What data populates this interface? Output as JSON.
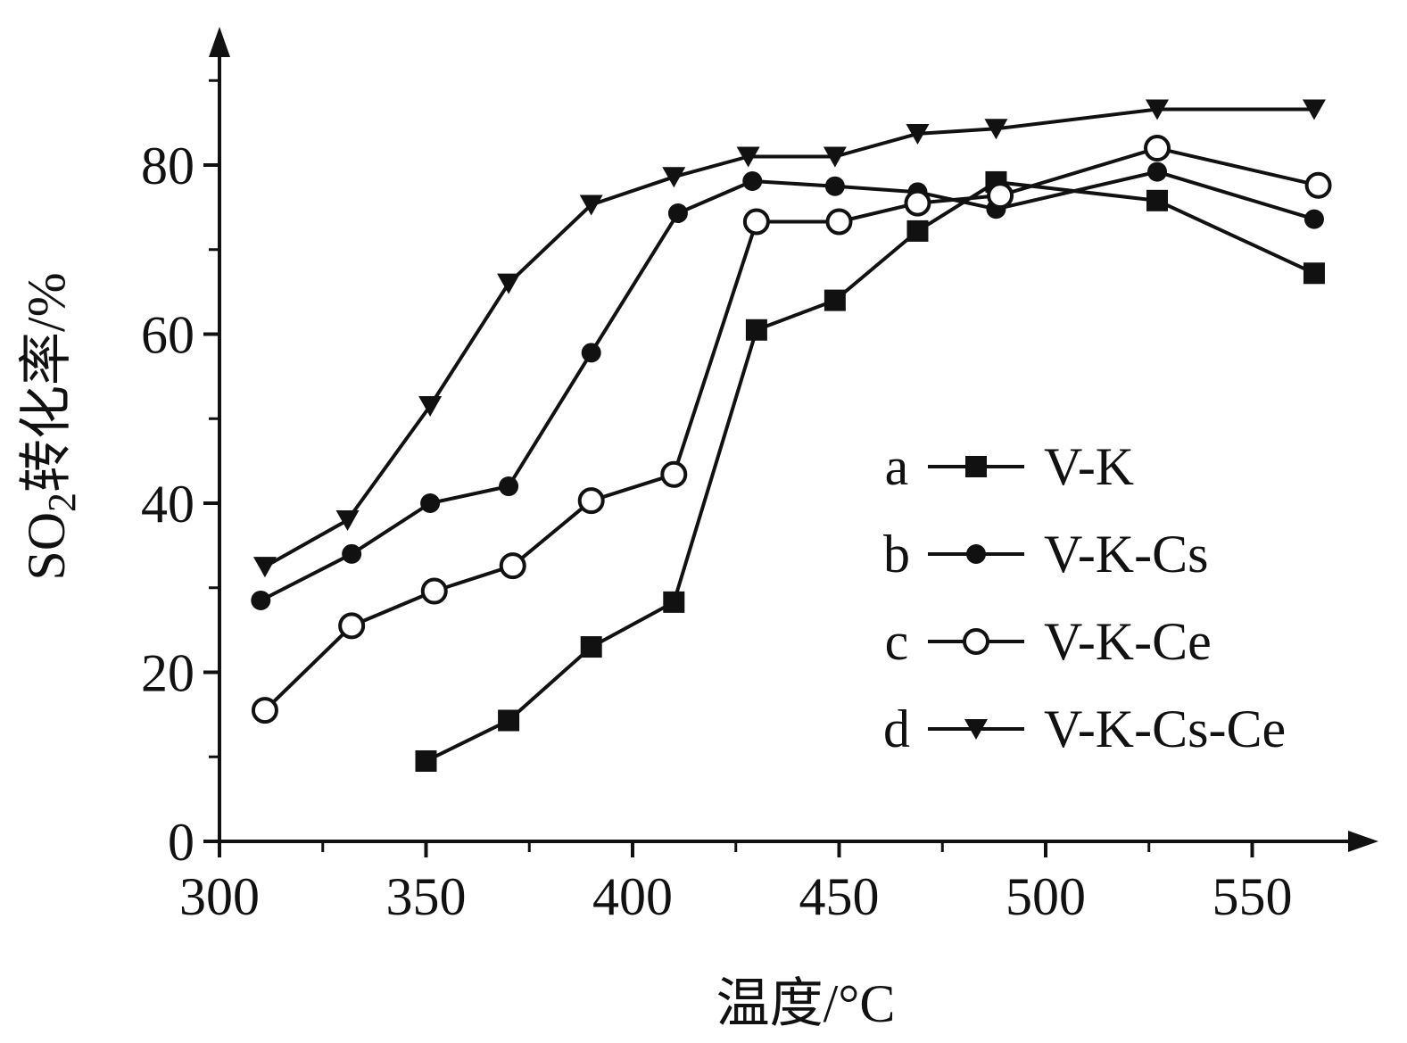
{
  "chart_data": {
    "type": "line",
    "xlabel": "温度/°C",
    "ylabel_main": "SO",
    "ylabel_sub": "2",
    "ylabel_rest": "转化率/%",
    "xlim": [
      300,
      570
    ],
    "ylim": [
      0,
      96
    ],
    "x_ticks": [
      300,
      350,
      400,
      450,
      500,
      550
    ],
    "x_tick_labels": [
      "300",
      "350",
      "400",
      "450",
      "500",
      "550"
    ],
    "x_minor_ticks": [
      325,
      375,
      425,
      475,
      525
    ],
    "y_ticks": [
      0,
      20,
      40,
      60,
      80
    ],
    "y_tick_labels": [
      "0",
      "20",
      "40",
      "60",
      "80"
    ],
    "y_minor_ticks": [
      10,
      30,
      50,
      70,
      90
    ],
    "legend_position": "right-middle",
    "series": [
      {
        "key": "a",
        "name": "V-K",
        "marker": "filled-square",
        "x": [
          350,
          370,
          390,
          410,
          430,
          449,
          469,
          488,
          527,
          565
        ],
        "y": [
          9.5,
          14.3,
          23,
          28.3,
          60.5,
          64,
          72.2,
          78,
          75.8,
          67.2
        ]
      },
      {
        "key": "b",
        "name": "V-K-Cs",
        "marker": "filled-circle",
        "x": [
          310,
          332,
          351,
          370,
          390,
          411,
          429,
          449,
          469,
          488,
          527,
          565
        ],
        "y": [
          28.5,
          34,
          40,
          42,
          57.8,
          74.3,
          78.1,
          77.5,
          76.8,
          74.8,
          79.2,
          73.6
        ]
      },
      {
        "key": "c",
        "name": "V-K-Ce",
        "marker": "open-circle",
        "x": [
          311,
          332,
          352,
          371,
          390,
          410,
          430,
          450,
          469,
          489,
          527,
          566
        ],
        "y": [
          15.5,
          25.5,
          29.6,
          32.6,
          40.3,
          43.4,
          73.3,
          73.3,
          75.5,
          76.4,
          82,
          77.6
        ]
      },
      {
        "key": "d",
        "name": "V-K-Cs-Ce",
        "marker": "filled-down-triangle",
        "x": [
          311,
          331,
          351,
          370,
          390,
          410,
          428,
          449,
          469,
          488,
          527,
          565
        ],
        "y": [
          32.5,
          38,
          51.5,
          66,
          75.3,
          78.6,
          81,
          81,
          83.7,
          84.3,
          86.6,
          86.6
        ]
      }
    ]
  }
}
